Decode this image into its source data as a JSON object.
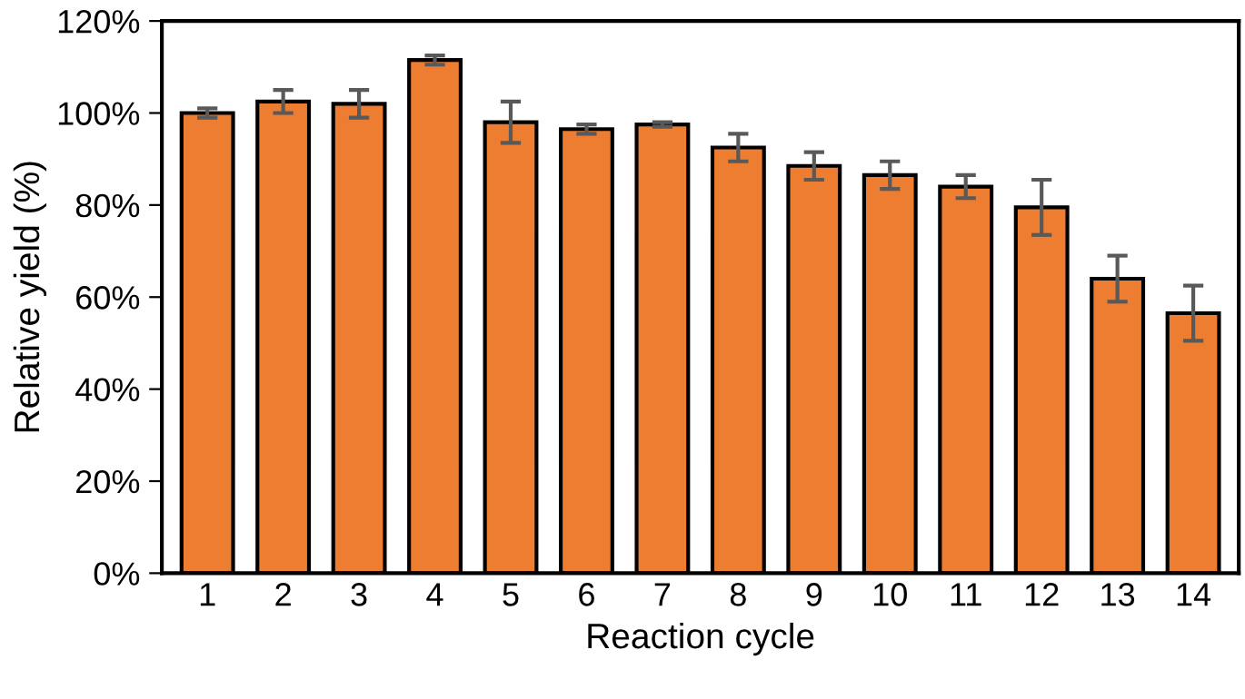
{
  "chart_data": {
    "type": "bar",
    "xlabel": "Reaction cycle",
    "ylabel": "Relative yield (%)",
    "categories": [
      "1",
      "2",
      "3",
      "4",
      "5",
      "6",
      "7",
      "8",
      "9",
      "10",
      "11",
      "12",
      "13",
      "14"
    ],
    "values": [
      100,
      102.5,
      102,
      111.5,
      98,
      96.5,
      97.5,
      92.5,
      88.5,
      86.5,
      84,
      79.5,
      64,
      56.5
    ],
    "errors": [
      1,
      2.5,
      3,
      1,
      4.5,
      1,
      0.5,
      3,
      3,
      3,
      2.5,
      6,
      5,
      6
    ],
    "color": "#ed7d31",
    "ylim": [
      0,
      120
    ],
    "yticks": [
      {
        "value": 0,
        "label": "0%"
      },
      {
        "value": 20,
        "label": "20%"
      },
      {
        "value": 40,
        "label": "40%"
      },
      {
        "value": 60,
        "label": "60%"
      },
      {
        "value": 80,
        "label": "80%"
      },
      {
        "value": 100,
        "label": "100%"
      },
      {
        "value": 120,
        "label": "120%"
      }
    ],
    "grid": false,
    "legend": false
  }
}
